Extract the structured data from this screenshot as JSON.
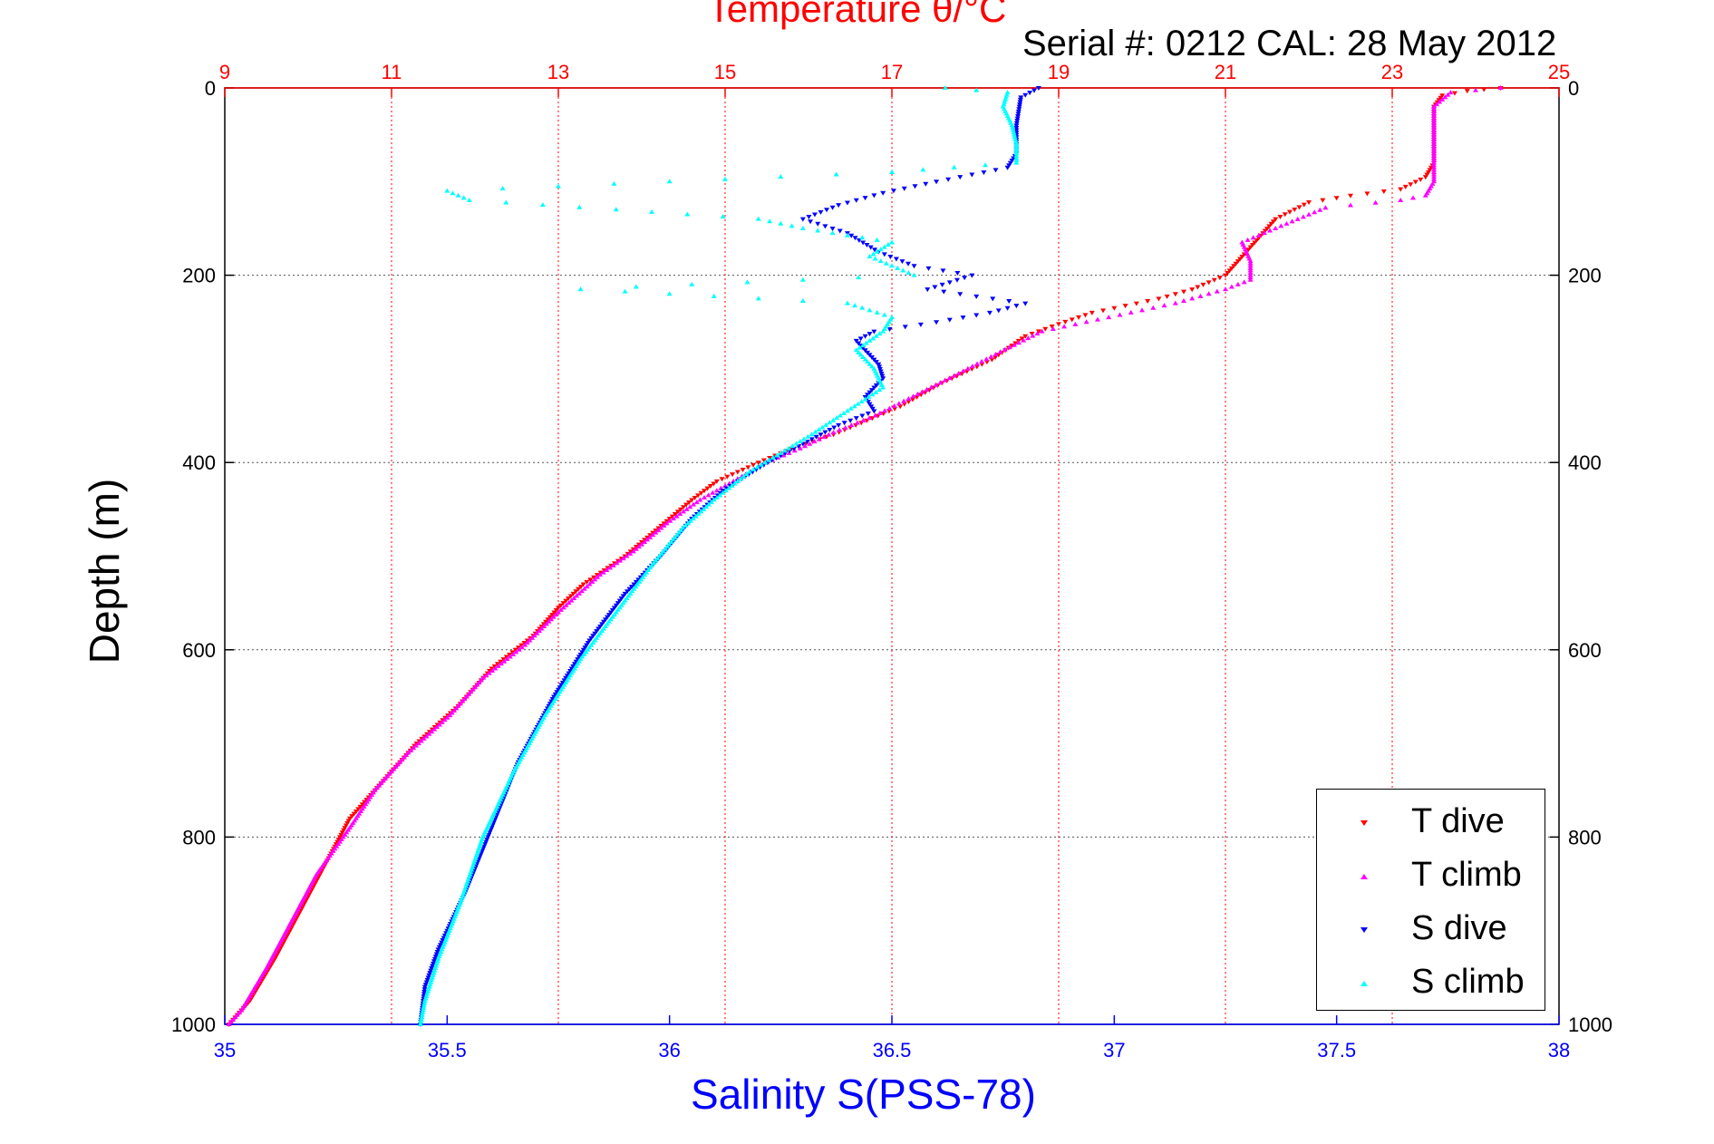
{
  "chart_data": {
    "type": "scatter",
    "title": "Temperature θ/°C",
    "subtitle": "Serial #: 0212  CAL: 28 May 2012",
    "ylabel": "Depth (m)",
    "xlabel": "Salinity S(PSS-78)",
    "ylim": [
      0,
      1000
    ],
    "y_reversed": true,
    "xlim_salinity": [
      35,
      38
    ],
    "xlim_temperature": [
      9,
      25
    ],
    "salinity_ticks": [
      "35",
      "35.5",
      "36",
      "36.5",
      "37",
      "37.5",
      "38"
    ],
    "temperature_ticks": [
      "9",
      "11",
      "13",
      "15",
      "17",
      "19",
      "21",
      "23",
      "25"
    ],
    "depth_ticks": [
      "0",
      "200",
      "400",
      "600",
      "800",
      "1000"
    ],
    "grid": true,
    "legend_position": "bottom-right",
    "series": [
      {
        "name": "T dive",
        "axis": "temperature",
        "marker": "triangle-down",
        "color": "#ff0000",
        "points": [
          [
            24.3,
            0
          ],
          [
            23.9,
            3
          ],
          [
            23.6,
            8
          ],
          [
            23.5,
            20
          ],
          [
            23.5,
            40
          ],
          [
            23.5,
            60
          ],
          [
            23.5,
            80
          ],
          [
            23.4,
            95
          ],
          [
            23.1,
            108
          ],
          [
            22.5,
            115
          ],
          [
            22.0,
            122
          ],
          [
            21.6,
            140
          ],
          [
            21.4,
            160
          ],
          [
            21.2,
            180
          ],
          [
            21.0,
            200
          ],
          [
            20.6,
            215
          ],
          [
            20.2,
            225
          ],
          [
            19.4,
            240
          ],
          [
            19.0,
            252
          ],
          [
            18.6,
            265
          ],
          [
            18.2,
            290
          ],
          [
            17.6,
            315
          ],
          [
            17.1,
            340
          ],
          [
            16.7,
            355
          ],
          [
            16.3,
            370
          ],
          [
            15.8,
            385
          ],
          [
            15.4,
            400
          ],
          [
            14.9,
            420
          ],
          [
            14.6,
            440
          ],
          [
            14.2,
            470
          ],
          [
            13.8,
            500
          ],
          [
            13.3,
            530
          ],
          [
            13.0,
            555
          ],
          [
            12.7,
            585
          ],
          [
            12.2,
            620
          ],
          [
            11.8,
            660
          ],
          [
            11.3,
            700
          ],
          [
            10.9,
            740
          ],
          [
            10.5,
            780
          ],
          [
            10.2,
            830
          ],
          [
            9.9,
            880
          ],
          [
            9.6,
            930
          ],
          [
            9.3,
            975
          ],
          [
            9.05,
            1000
          ]
        ]
      },
      {
        "name": "T climb",
        "axis": "temperature",
        "marker": "triangle-up",
        "color": "#ff00ff",
        "points": [
          [
            24.3,
            0
          ],
          [
            23.7,
            5
          ],
          [
            23.5,
            20
          ],
          [
            23.5,
            40
          ],
          [
            23.5,
            60
          ],
          [
            23.5,
            80
          ],
          [
            23.5,
            100
          ],
          [
            23.4,
            115
          ],
          [
            23.1,
            120
          ],
          [
            22.2,
            128
          ],
          [
            21.6,
            150
          ],
          [
            21.2,
            165
          ],
          [
            21.3,
            185
          ],
          [
            21.3,
            205
          ],
          [
            21.0,
            215
          ],
          [
            20.4,
            230
          ],
          [
            19.6,
            245
          ],
          [
            18.8,
            260
          ],
          [
            18.3,
            282
          ],
          [
            17.8,
            305
          ],
          [
            17.2,
            332
          ],
          [
            16.8,
            350
          ],
          [
            16.3,
            368
          ],
          [
            15.9,
            385
          ],
          [
            15.5,
            400
          ],
          [
            15.1,
            420
          ],
          [
            14.7,
            440
          ],
          [
            14.3,
            465
          ],
          [
            13.9,
            495
          ],
          [
            13.5,
            520
          ],
          [
            13.0,
            560
          ],
          [
            12.6,
            595
          ],
          [
            12.1,
            630
          ],
          [
            11.7,
            670
          ],
          [
            11.2,
            710
          ],
          [
            10.8,
            750
          ],
          [
            10.5,
            790
          ],
          [
            10.1,
            840
          ],
          [
            9.8,
            890
          ],
          [
            9.5,
            940
          ],
          [
            9.2,
            985
          ],
          [
            9.05,
            1000
          ]
        ]
      },
      {
        "name": "S dive",
        "axis": "salinity",
        "marker": "triangle-down",
        "color": "#0000ff",
        "points": [
          [
            36.83,
            0
          ],
          [
            36.79,
            10
          ],
          [
            36.78,
            40
          ],
          [
            36.78,
            70
          ],
          [
            36.76,
            85
          ],
          [
            36.6,
            100
          ],
          [
            36.48,
            112
          ],
          [
            36.38,
            125
          ],
          [
            36.3,
            140
          ],
          [
            36.4,
            155
          ],
          [
            36.47,
            175
          ],
          [
            36.55,
            190
          ],
          [
            36.68,
            200
          ],
          [
            36.58,
            215
          ],
          [
            36.8,
            230
          ],
          [
            36.72,
            240
          ],
          [
            36.6,
            250
          ],
          [
            36.46,
            260
          ],
          [
            36.42,
            270
          ],
          [
            36.44,
            280
          ],
          [
            36.47,
            295
          ],
          [
            36.48,
            310
          ],
          [
            36.44,
            330
          ],
          [
            36.46,
            345
          ],
          [
            36.38,
            360
          ],
          [
            36.3,
            380
          ],
          [
            36.22,
            400
          ],
          [
            36.12,
            430
          ],
          [
            36.05,
            460
          ],
          [
            35.98,
            500
          ],
          [
            35.9,
            540
          ],
          [
            35.82,
            590
          ],
          [
            35.74,
            650
          ],
          [
            35.66,
            720
          ],
          [
            35.6,
            790
          ],
          [
            35.54,
            860
          ],
          [
            35.48,
            920
          ],
          [
            35.45,
            960
          ],
          [
            35.44,
            1000
          ]
        ]
      },
      {
        "name": "S climb",
        "axis": "salinity",
        "marker": "triangle-up",
        "color": "#00ffff",
        "points": [
          [
            36.62,
            0
          ],
          [
            36.76,
            5
          ],
          [
            36.75,
            20
          ],
          [
            36.77,
            40
          ],
          [
            36.78,
            60
          ],
          [
            36.78,
            80
          ],
          [
            36.5,
            90
          ],
          [
            36.0,
            100
          ],
          [
            35.5,
            110
          ],
          [
            35.55,
            120
          ],
          [
            35.88,
            130
          ],
          [
            36.2,
            140
          ],
          [
            36.3,
            150
          ],
          [
            36.5,
            165
          ],
          [
            36.45,
            180
          ],
          [
            36.55,
            200
          ],
          [
            35.8,
            215
          ],
          [
            36.4,
            230
          ],
          [
            36.5,
            245
          ],
          [
            36.48,
            260
          ],
          [
            36.42,
            280
          ],
          [
            36.46,
            300
          ],
          [
            36.48,
            320
          ],
          [
            36.4,
            345
          ],
          [
            36.32,
            370
          ],
          [
            36.25,
            390
          ],
          [
            36.18,
            410
          ],
          [
            36.1,
            440
          ],
          [
            36.03,
            470
          ],
          [
            35.96,
            510
          ],
          [
            35.88,
            560
          ],
          [
            35.8,
            610
          ],
          [
            35.72,
            670
          ],
          [
            35.65,
            730
          ],
          [
            35.58,
            800
          ],
          [
            35.53,
            870
          ],
          [
            35.48,
            930
          ],
          [
            35.45,
            975
          ],
          [
            35.44,
            1000
          ]
        ]
      }
    ]
  },
  "legend": [
    {
      "label": "T dive",
      "color": "#ff0000",
      "marker": "triangle-down"
    },
    {
      "label": "T climb",
      "color": "#ff00ff",
      "marker": "triangle-up"
    },
    {
      "label": "S dive",
      "color": "#0000ff",
      "marker": "triangle-down"
    },
    {
      "label": "S climb",
      "color": "#00ffff",
      "marker": "triangle-up"
    }
  ]
}
